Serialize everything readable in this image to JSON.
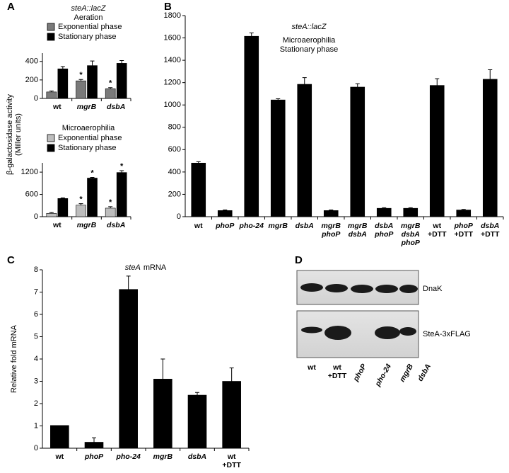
{
  "chart_data": [
    {
      "type": "bar",
      "panel": "A",
      "title": [
        "steA::lacZ"
      ],
      "title_italic": [
        true
      ],
      "subtitle": [
        "Aeration"
      ],
      "ylabel": [
        "β-galactosidase activity",
        "(Miller units)"
      ],
      "categories": [
        [
          "wt"
        ],
        [
          "mgrB"
        ],
        [
          "dsbA"
        ]
      ],
      "italic": [
        [
          false
        ],
        [
          true
        ],
        [
          true
        ]
      ],
      "series": [
        {
          "name": "Exponential phase",
          "color": "#7a7a7a",
          "values": [
            70,
            190,
            105
          ],
          "errors": [
            10,
            15,
            12
          ],
          "significance": [
            null,
            "*",
            "*"
          ]
        },
        {
          "name": "Stationary phase",
          "color": "#000000",
          "values": [
            320,
            355,
            380
          ],
          "errors": [
            25,
            50,
            30
          ],
          "significance": [
            null,
            null,
            null
          ]
        }
      ],
      "ylim": [
        0,
        490
      ],
      "yticks": [
        0,
        200,
        400
      ]
    },
    {
      "type": "bar",
      "title": [
        "Microaerophilia"
      ],
      "title_italic": [
        false
      ],
      "categories": [
        [
          "wt"
        ],
        [
          "mgrB"
        ],
        [
          "dsbA"
        ]
      ],
      "italic": [
        [
          false
        ],
        [
          true
        ],
        [
          true
        ]
      ],
      "series": [
        {
          "name": "Exponential phase",
          "color": "#bdbdbd",
          "values": [
            90,
            310,
            230
          ],
          "errors": [
            20,
            40,
            40
          ],
          "significance": [
            null,
            "*",
            "*"
          ]
        },
        {
          "name": "Stationary phase",
          "color": "#000000",
          "values": [
            490,
            1040,
            1190
          ],
          "errors": [
            15,
            20,
            50
          ],
          "significance": [
            null,
            "*",
            "*"
          ]
        }
      ],
      "ylim": [
        0,
        1450
      ],
      "yticks": [
        0,
        600,
        1200
      ]
    },
    {
      "type": "bar",
      "panel": "B",
      "title": [
        "steA::lacZ"
      ],
      "title_italic": [
        true
      ],
      "subtitle": [
        "Microaerophilia",
        "Stationary phase"
      ],
      "categories": [
        [
          "wt"
        ],
        [
          "phoP"
        ],
        [
          "pho-24"
        ],
        [
          "mgrB"
        ],
        [
          "dsbA"
        ],
        [
          "mgrB",
          "phoP"
        ],
        [
          "mgrB",
          "dsbA"
        ],
        [
          "dsbA",
          "phoP"
        ],
        [
          "mgrB",
          "dsbA",
          "phoP"
        ],
        [
          "wt",
          "+DTT"
        ],
        [
          "phoP",
          "+DTT"
        ],
        [
          "dsbA",
          "+DTT"
        ]
      ],
      "italic": [
        [
          false
        ],
        [
          true
        ],
        [
          true
        ],
        [
          true
        ],
        [
          true
        ],
        [
          true,
          true
        ],
        [
          true,
          true
        ],
        [
          true,
          true
        ],
        [
          true,
          true,
          true
        ],
        [
          false,
          false
        ],
        [
          true,
          false
        ],
        [
          true,
          false
        ]
      ],
      "series": [
        {
          "color": "#000000",
          "values": [
            480,
            55,
            1615,
            1045,
            1185,
            55,
            1160,
            75,
            75,
            1175,
            60,
            1230
          ],
          "errors": [
            12,
            5,
            30,
            10,
            60,
            5,
            30,
            5,
            5,
            60,
            5,
            85
          ]
        }
      ],
      "ylim": [
        0,
        1800
      ],
      "yticks": [
        0,
        200,
        400,
        600,
        800,
        1000,
        1200,
        1400,
        1600,
        1800
      ]
    },
    {
      "type": "bar",
      "panel": "C",
      "title": [
        "steA",
        "mRNA"
      ],
      "title_italic": [
        true,
        false
      ],
      "ylabel": [
        "Relative fold mRNA"
      ],
      "categories": [
        [
          "wt"
        ],
        [
          "phoP"
        ],
        [
          "pho-24"
        ],
        [
          "mgrB"
        ],
        [
          "dsbA"
        ],
        [
          "wt",
          "+DTT"
        ]
      ],
      "italic": [
        [
          false
        ],
        [
          true
        ],
        [
          true
        ],
        [
          true
        ],
        [
          true
        ],
        [
          false,
          false
        ]
      ],
      "series": [
        {
          "color": "#000000",
          "values": [
            1.02,
            0.27,
            7.12,
            3.1,
            2.38,
            3.0
          ],
          "errors": [
            null,
            0.2,
            0.6,
            0.9,
            0.12,
            0.6
          ]
        }
      ],
      "ylim": [
        0,
        8
      ],
      "yticks": [
        0,
        1,
        2,
        3,
        4,
        5,
        6,
        7,
        8
      ]
    }
  ],
  "blot": {
    "panel": "D",
    "bands": [
      "DnaK",
      "SteA-3xFLAG"
    ],
    "lanes": [
      [
        "wt"
      ],
      [
        "wt",
        "+DTT"
      ],
      [
        "phoP"
      ],
      [
        "pho-24"
      ],
      [
        "mgrB"
      ],
      [
        "dsbA"
      ]
    ],
    "italic": [
      [
        false
      ],
      [
        false,
        false
      ],
      [
        true
      ],
      [
        true
      ],
      [
        true
      ],
      [
        true
      ]
    ]
  }
}
